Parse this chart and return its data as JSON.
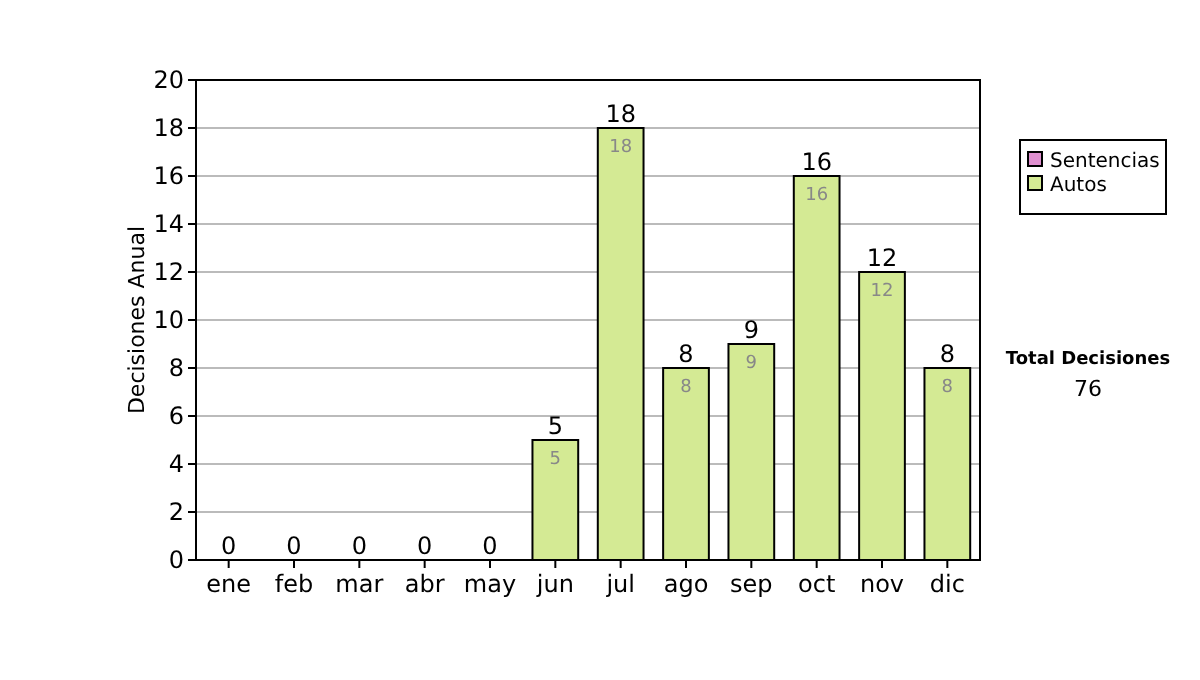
{
  "chart_data": {
    "type": "bar",
    "stacked": true,
    "ylabel": "Decisiones Anual",
    "categories": [
      "ene",
      "feb",
      "mar",
      "abr",
      "may",
      "jun",
      "jul",
      "ago",
      "sep",
      "oct",
      "nov",
      "dic"
    ],
    "series": [
      {
        "name": "Sentencias",
        "color": "#e090d0",
        "values": [
          0,
          0,
          0,
          0,
          0,
          0,
          0,
          0,
          0,
          0,
          0,
          0
        ]
      },
      {
        "name": "Autos",
        "color": "#d4ea94",
        "values": [
          0,
          0,
          0,
          0,
          0,
          5,
          18,
          8,
          9,
          16,
          12,
          8
        ],
        "value_labels": [
          null,
          null,
          null,
          null,
          null,
          "5",
          "18",
          "8",
          "9",
          "16",
          "12",
          "8"
        ]
      }
    ],
    "totals": [
      "0",
      "0",
      "0",
      "0",
      "0",
      "5",
      "18",
      "8",
      "9",
      "16",
      "12",
      "8"
    ],
    "ylim": [
      0,
      20
    ],
    "yticks": [
      0,
      2,
      4,
      6,
      8,
      10,
      12,
      14,
      16,
      18,
      20
    ],
    "grid": "y",
    "legend": "right",
    "annotations": [
      "Total Decisiones",
      "76"
    ]
  }
}
